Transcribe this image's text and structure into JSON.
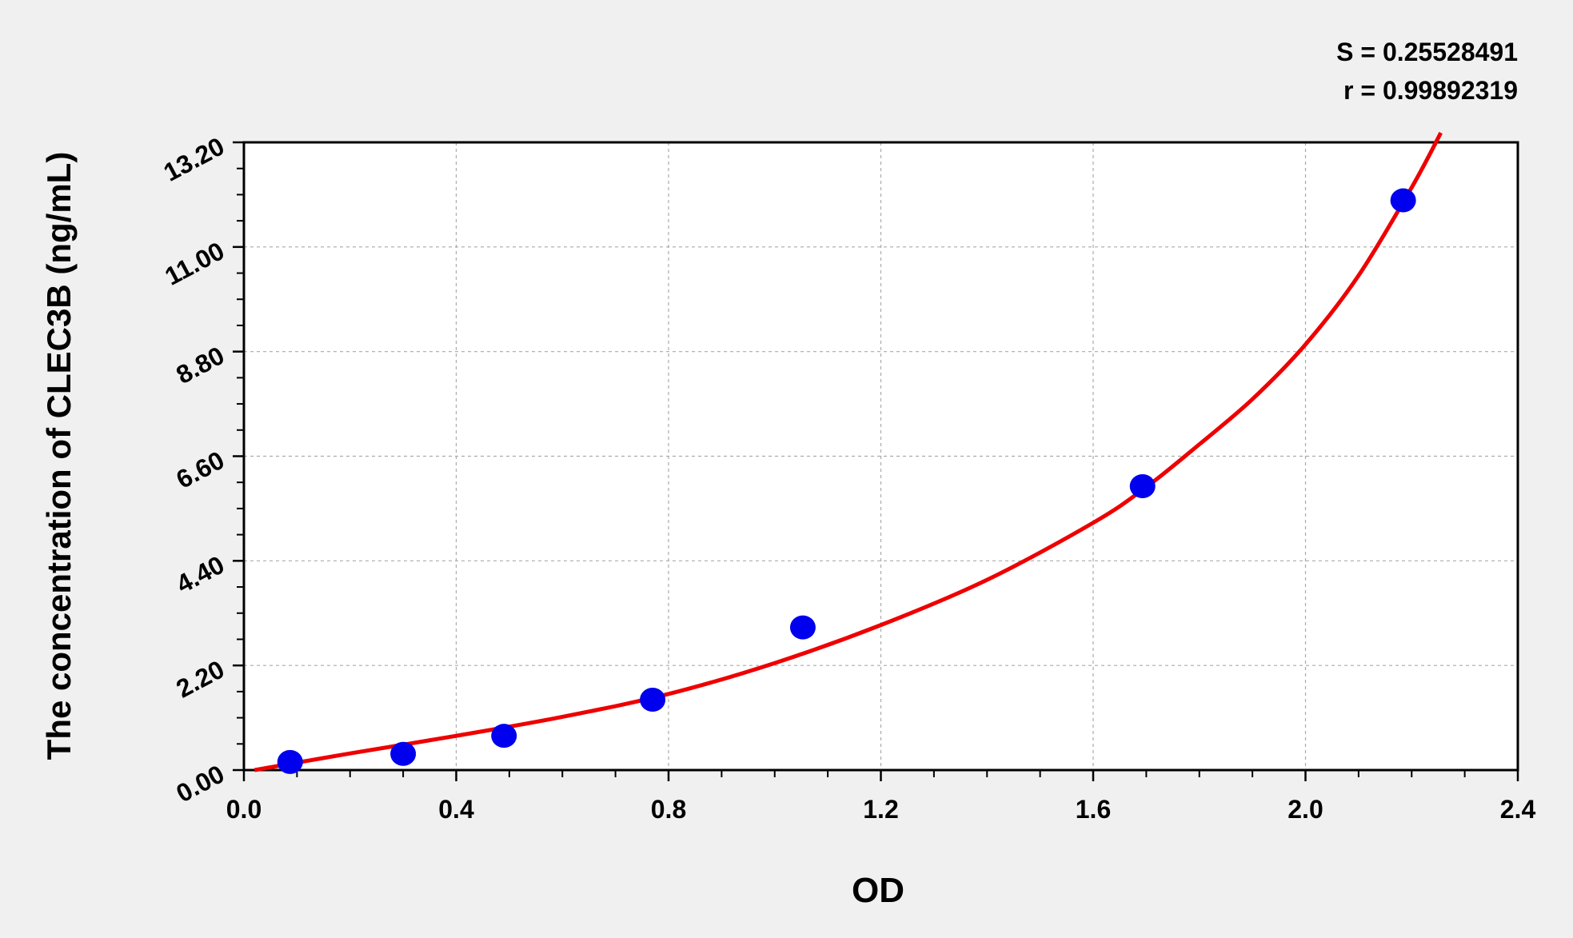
{
  "chart_data": {
    "type": "scatter",
    "xlabel": "OD",
    "ylabel": "The concentration of CLEC3B (ng/mL)",
    "xlim": [
      0,
      2.4
    ],
    "ylim": [
      0,
      13.2
    ],
    "xticks": [
      "0.0",
      "0.4",
      "0.8",
      "1.2",
      "1.6",
      "2.0",
      "2.4"
    ],
    "yticks": [
      "0.00",
      "2.20",
      "4.40",
      "6.60",
      "8.80",
      "11.00",
      "13.20"
    ],
    "grid": true,
    "annotations": [
      "S = 0.25528491",
      "r = 0.99892319"
    ],
    "points": {
      "x": [
        0.087,
        0.3,
        0.49,
        0.77,
        1.053,
        1.693,
        2.184
      ],
      "y": [
        0.17,
        0.34,
        0.72,
        1.48,
        3.0,
        5.97,
        11.98
      ],
      "color": "#0000ee"
    },
    "fit_curve": {
      "x": [
        0.02,
        0.2,
        0.4,
        0.6,
        0.8,
        1.0,
        1.2,
        1.4,
        1.6,
        1.7,
        1.8,
        1.9,
        2.0,
        2.1,
        2.2,
        2.255
      ],
      "y": [
        0.0,
        0.35,
        0.72,
        1.12,
        1.6,
        2.25,
        3.05,
        4.0,
        5.2,
        5.95,
        6.85,
        7.8,
        8.95,
        10.4,
        12.25,
        13.4
      ],
      "color": "#ee0000"
    }
  }
}
